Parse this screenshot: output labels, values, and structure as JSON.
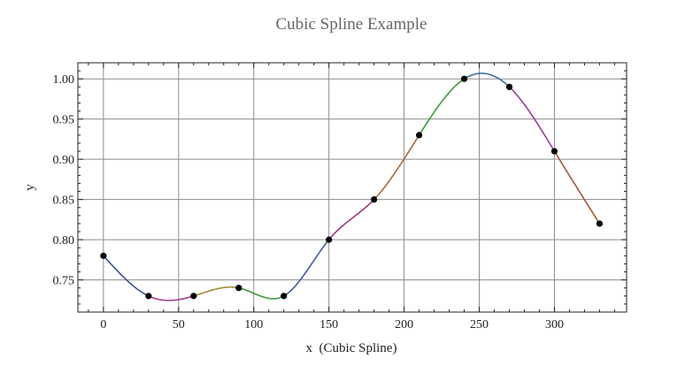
{
  "chart_data": {
    "type": "line",
    "title": "Cubic Spline Example",
    "xlabel": "x  (Cubic Spline)",
    "ylabel": "y",
    "xlim": [
      -17,
      348
    ],
    "ylim": [
      0.71,
      1.02
    ],
    "grid": true,
    "x_ticks": [
      0,
      50,
      100,
      150,
      200,
      250,
      300
    ],
    "x_tick_labels": [
      "0",
      "50",
      "100",
      "150",
      "200",
      "250",
      "300"
    ],
    "y_ticks": [
      0.75,
      0.8,
      0.85,
      0.9,
      0.95,
      1.0
    ],
    "y_tick_labels": [
      "0.75",
      "0.80",
      "0.85",
      "0.90",
      "0.95",
      "1.00"
    ],
    "series": [
      {
        "x": [
          0,
          30,
          60,
          90,
          120,
          150,
          180,
          210,
          240,
          270,
          300,
          330
        ],
        "y": [
          0.78,
          0.73,
          0.73,
          0.74,
          0.73,
          0.8,
          0.85,
          0.93,
          1.0,
          0.99,
          0.91,
          0.82
        ]
      }
    ],
    "segment_colors": [
      "#3d4f9e",
      "#a43d8c",
      "#a68a3c",
      "#3f9a3c",
      "#3d5ba4",
      "#a4387f",
      "#a66a3c",
      "#3f9a3c",
      "#3d6ea3",
      "#9c3c9f",
      "#a45a35"
    ]
  }
}
